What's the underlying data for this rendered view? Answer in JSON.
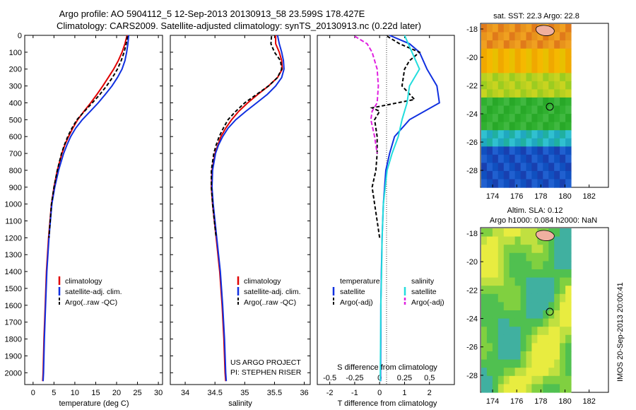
{
  "header": {
    "line1": "Argo profile: AO 5904112_5 12-Sep-2013 20130913_58 23.599S 178.427E",
    "line2": "Climatology: CARS2009. Satellite-adjusted climatology: synTS_20130913.nc (0.22d later)"
  },
  "footer_stamp": "IMOS 20-Sep-2013 20:00:41",
  "colors": {
    "climatology": "#e00000",
    "satellite": "#1030e0",
    "argo": "#000000",
    "sal_satellite": "#22dddd",
    "sal_argo": "#e020e0"
  },
  "depth_axis": {
    "ticks": [
      "0",
      "100",
      "200",
      "300",
      "400",
      "500",
      "600",
      "700",
      "800",
      "900",
      "1000",
      "1100",
      "1200",
      "1300",
      "1400",
      "1500",
      "1600",
      "1700",
      "1800",
      "1900",
      "2000"
    ],
    "range": [
      0,
      2070
    ],
    "reversed": true
  },
  "chart_data": [
    {
      "type": "line",
      "xlabel": "temperature (deg C)",
      "xticks": [
        "0",
        "5",
        "10",
        "15",
        "20",
        "25",
        "30"
      ],
      "xlim": [
        -2,
        31
      ],
      "legend": [
        "climatology",
        "satellite-adj. clim.",
        "Argo(..raw -QC)"
      ],
      "series": [
        {
          "name": "climatology",
          "color": "#e00000",
          "dash": "",
          "depth": [
            0,
            50,
            100,
            150,
            200,
            250,
            300,
            350,
            400,
            450,
            500,
            550,
            600,
            650,
            700,
            800,
            900,
            1000,
            1200,
            1400,
            1600,
            1800,
            2000,
            2050
          ],
          "values": [
            22.5,
            22.0,
            21.3,
            20.4,
            19.3,
            18.0,
            16.7,
            15.3,
            13.8,
            12.2,
            10.7,
            9.5,
            8.5,
            7.6,
            6.9,
            5.8,
            5.0,
            4.4,
            3.7,
            3.2,
            2.9,
            2.6,
            2.4,
            2.3
          ]
        },
        {
          "name": "satellite-adj. clim.",
          "color": "#1030e0",
          "dash": "",
          "depth": [
            0,
            50,
            100,
            150,
            200,
            250,
            300,
            350,
            400,
            450,
            500,
            550,
            600,
            650,
            700,
            800,
            900,
            1000,
            1200,
            1400,
            1600,
            1800,
            2000,
            2050
          ],
          "values": [
            22.9,
            22.7,
            22.4,
            22.0,
            21.3,
            20.2,
            18.9,
            17.3,
            15.6,
            13.7,
            11.8,
            10.2,
            9.0,
            8.1,
            7.3,
            6.1,
            5.2,
            4.5,
            3.8,
            3.3,
            3.0,
            2.7,
            2.5,
            2.4
          ]
        },
        {
          "name": "Argo(..raw -QC)",
          "color": "#000000",
          "dash": "5,3",
          "depth": [
            5,
            50,
            100,
            150,
            200,
            250,
            300,
            350,
            400,
            450,
            500,
            550,
            600,
            650,
            700,
            800,
            900,
            1000,
            1100,
            1200
          ],
          "values": [
            22.6,
            22.3,
            21.8,
            21.1,
            20.2,
            19.0,
            17.6,
            16.0,
            14.2,
            12.3,
            10.5,
            9.3,
            8.3,
            7.5,
            6.8,
            5.8,
            5.0,
            4.4,
            4.1,
            3.8
          ]
        }
      ]
    },
    {
      "type": "line",
      "xlabel": "salinity",
      "xticks": [
        "34",
        "34.5",
        "35",
        "35.5",
        "36"
      ],
      "xlim": [
        33.75,
        36.1
      ],
      "legend": [
        "climatology",
        "satellite-adj. clim.",
        "Argo(..raw -QC)"
      ],
      "annotations": [
        "US ARGO PROJECT",
        "PI: STEPHEN RISER"
      ],
      "series": [
        {
          "name": "climatology",
          "color": "#e00000",
          "dash": "",
          "depth": [
            0,
            50,
            100,
            150,
            200,
            250,
            300,
            350,
            400,
            450,
            500,
            550,
            600,
            650,
            700,
            800,
            900,
            1000,
            1200,
            1400,
            1600,
            1800,
            2000,
            2050
          ],
          "values": [
            35.52,
            35.52,
            35.58,
            35.62,
            35.63,
            35.55,
            35.4,
            35.22,
            35.05,
            34.9,
            34.78,
            34.68,
            34.6,
            34.55,
            34.5,
            34.45,
            34.44,
            34.46,
            34.52,
            34.58,
            34.62,
            34.65,
            34.67,
            34.68
          ]
        },
        {
          "name": "satellite-adj. clim.",
          "color": "#1030e0",
          "dash": "",
          "depth": [
            0,
            50,
            100,
            150,
            200,
            250,
            300,
            350,
            400,
            450,
            500,
            550,
            600,
            650,
            700,
            800,
            900,
            1000,
            1200,
            1400,
            1600,
            1800,
            2000,
            2050
          ],
          "values": [
            35.55,
            35.58,
            35.62,
            35.65,
            35.66,
            35.62,
            35.52,
            35.38,
            35.2,
            35.02,
            34.85,
            34.72,
            34.63,
            34.56,
            34.51,
            34.46,
            34.45,
            34.47,
            34.53,
            34.59,
            34.63,
            34.66,
            34.68,
            34.69
          ]
        },
        {
          "name": "Argo(..raw -QC)",
          "color": "#000000",
          "dash": "5,3",
          "depth": [
            5,
            50,
            100,
            150,
            200,
            250,
            300,
            350,
            400,
            450,
            500,
            550,
            600,
            650,
            700,
            800,
            900,
            1000,
            1100,
            1200
          ],
          "values": [
            35.45,
            35.44,
            35.5,
            35.6,
            35.62,
            35.55,
            35.4,
            35.2,
            35.0,
            34.85,
            34.72,
            34.64,
            34.57,
            34.52,
            34.48,
            34.44,
            34.44,
            34.46,
            34.49,
            34.52
          ]
        }
      ]
    },
    {
      "type": "line",
      "xlabel": "T difference from climatology",
      "xlabel_top": "S difference from climatology",
      "xticks": [
        "-2",
        "-1",
        "0",
        "1",
        "2"
      ],
      "xticks_top": [
        "-0.5",
        "-0.25",
        "0",
        "0.25",
        "0.5"
      ],
      "xlim": [
        -2.5,
        3.0
      ],
      "legend_titles": [
        "temperature",
        "salinity"
      ],
      "legend": [
        "satellite",
        "Argo(-adj)",
        "satellite",
        "Argo(-adj)"
      ],
      "series": [
        {
          "name": "satellite",
          "color": "#1030e0",
          "dash": "",
          "depth": [
            0,
            50,
            100,
            200,
            300,
            400,
            500,
            600,
            700,
            800,
            1000,
            1200,
            1400,
            1600,
            1800,
            2000,
            2050
          ],
          "values": [
            0.4,
            1.2,
            1.6,
            1.9,
            2.3,
            2.4,
            1.2,
            0.6,
            0.4,
            0.25,
            0.15,
            0.1,
            0.07,
            0.05,
            0.05,
            0.04,
            0.04
          ]
        },
        {
          "name": "Argo(-adj)",
          "color": "#000000",
          "dash": "5,3",
          "depth": [
            5,
            50,
            100,
            150,
            200,
            300,
            380,
            430,
            450,
            500,
            600,
            700,
            800,
            900,
            1000,
            1100,
            1200
          ],
          "values": [
            0.3,
            0.8,
            1.6,
            1.2,
            1.0,
            0.9,
            1.4,
            -0.3,
            0.0,
            -0.2,
            -0.1,
            -0.1,
            -0.15,
            -0.3,
            -0.2,
            -0.1,
            0.0
          ]
        },
        {
          "name": "satellite",
          "color": "#22dddd",
          "dash": "",
          "depth": [
            0,
            100,
            200,
            300,
            400,
            500,
            600,
            700,
            800,
            1000,
            1200,
            1400,
            1600,
            1800,
            2000,
            2050
          ],
          "values": [
            1.0,
            1.3,
            1.6,
            1.2,
            1.1,
            0.9,
            0.75,
            0.5,
            0.3,
            0.15,
            0.1,
            0.08,
            0.05,
            0.04,
            0.03,
            0.03
          ]
        },
        {
          "name": "Argo(-adj)",
          "color": "#e020e0",
          "dash": "6,3",
          "depth": [
            5,
            50,
            100,
            200,
            300,
            400,
            450,
            500,
            600,
            700
          ],
          "values": [
            -1.0,
            -0.5,
            -0.3,
            -0.1,
            -0.05,
            -0.1,
            -0.3,
            -0.35,
            -0.2,
            -0.1
          ]
        }
      ]
    },
    {
      "type": "heatmap",
      "title": "sat. SST: 22.3 Argo: 22.8",
      "xticks": [
        "174",
        "176",
        "178",
        "180",
        "182"
      ],
      "yticks": [
        "-18",
        "-20",
        "-22",
        "-24",
        "-26",
        "-28"
      ]
    },
    {
      "type": "heatmap",
      "title_line1": "Altim. SLA: 0.12",
      "title_line2": "Argo h1000: 0.084 h2000: NaN",
      "xticks": [
        "174",
        "176",
        "178",
        "180",
        "182"
      ],
      "yticks": [
        "-18",
        "-20",
        "-22",
        "-24",
        "-26",
        "-28"
      ]
    }
  ]
}
